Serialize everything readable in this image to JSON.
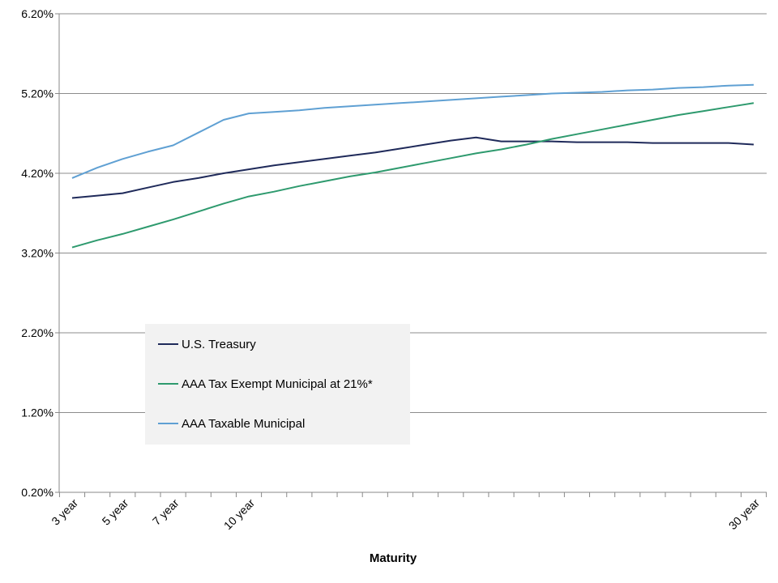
{
  "chart_data": {
    "type": "line",
    "xlabel": "Maturity",
    "ylabel": "",
    "ylim": [
      0.2,
      6.2
    ],
    "yticks": [
      "0.20%",
      "1.20%",
      "2.20%",
      "3.20%",
      "4.20%",
      "5.20%",
      "6.20%"
    ],
    "ytick_values": [
      0.2,
      1.2,
      2.2,
      3.2,
      4.2,
      5.2,
      6.2
    ],
    "x": [
      3,
      4,
      5,
      6,
      7,
      8,
      9,
      10,
      11,
      12,
      13,
      14,
      15,
      16,
      17,
      18,
      19,
      20,
      21,
      22,
      23,
      24,
      25,
      26,
      27,
      28,
      29,
      30
    ],
    "x_tick_labels": [
      {
        "x": 3,
        "label": "3 year"
      },
      {
        "x": 5,
        "label": "5 year"
      },
      {
        "x": 7,
        "label": "7 year"
      },
      {
        "x": 10,
        "label": "10 year"
      },
      {
        "x": 30,
        "label": "30 year"
      }
    ],
    "grid": "horizontal",
    "legend_position": "lower-left",
    "series": [
      {
        "name": "U.S. Treasury",
        "color": "#1f2a5a",
        "values": [
          3.89,
          3.92,
          3.95,
          4.02,
          4.09,
          4.14,
          4.2,
          4.25,
          4.3,
          4.34,
          4.38,
          4.42,
          4.46,
          4.51,
          4.56,
          4.61,
          4.65,
          4.6,
          4.6,
          4.6,
          4.59,
          4.59,
          4.59,
          4.58,
          4.58,
          4.58,
          4.58,
          4.56
        ]
      },
      {
        "name": "AAA Tax Exempt Municipal at 21%*",
        "color": "#2e9a6e",
        "values": [
          3.27,
          3.36,
          3.44,
          3.53,
          3.62,
          3.72,
          3.82,
          3.91,
          3.97,
          4.04,
          4.1,
          4.16,
          4.21,
          4.27,
          4.33,
          4.39,
          4.45,
          4.5,
          4.56,
          4.63,
          4.69,
          4.75,
          4.81,
          4.87,
          4.93,
          4.98,
          5.03,
          5.08
        ]
      },
      {
        "name": "AAA Taxable Municipal",
        "color": "#5fa0d3",
        "values": [
          4.14,
          4.27,
          4.38,
          4.47,
          4.55,
          4.71,
          4.87,
          4.95,
          4.97,
          4.99,
          5.02,
          5.04,
          5.06,
          5.08,
          5.1,
          5.12,
          5.14,
          5.16,
          5.18,
          5.2,
          5.21,
          5.22,
          5.24,
          5.25,
          5.27,
          5.28,
          5.3,
          5.31
        ]
      }
    ]
  }
}
